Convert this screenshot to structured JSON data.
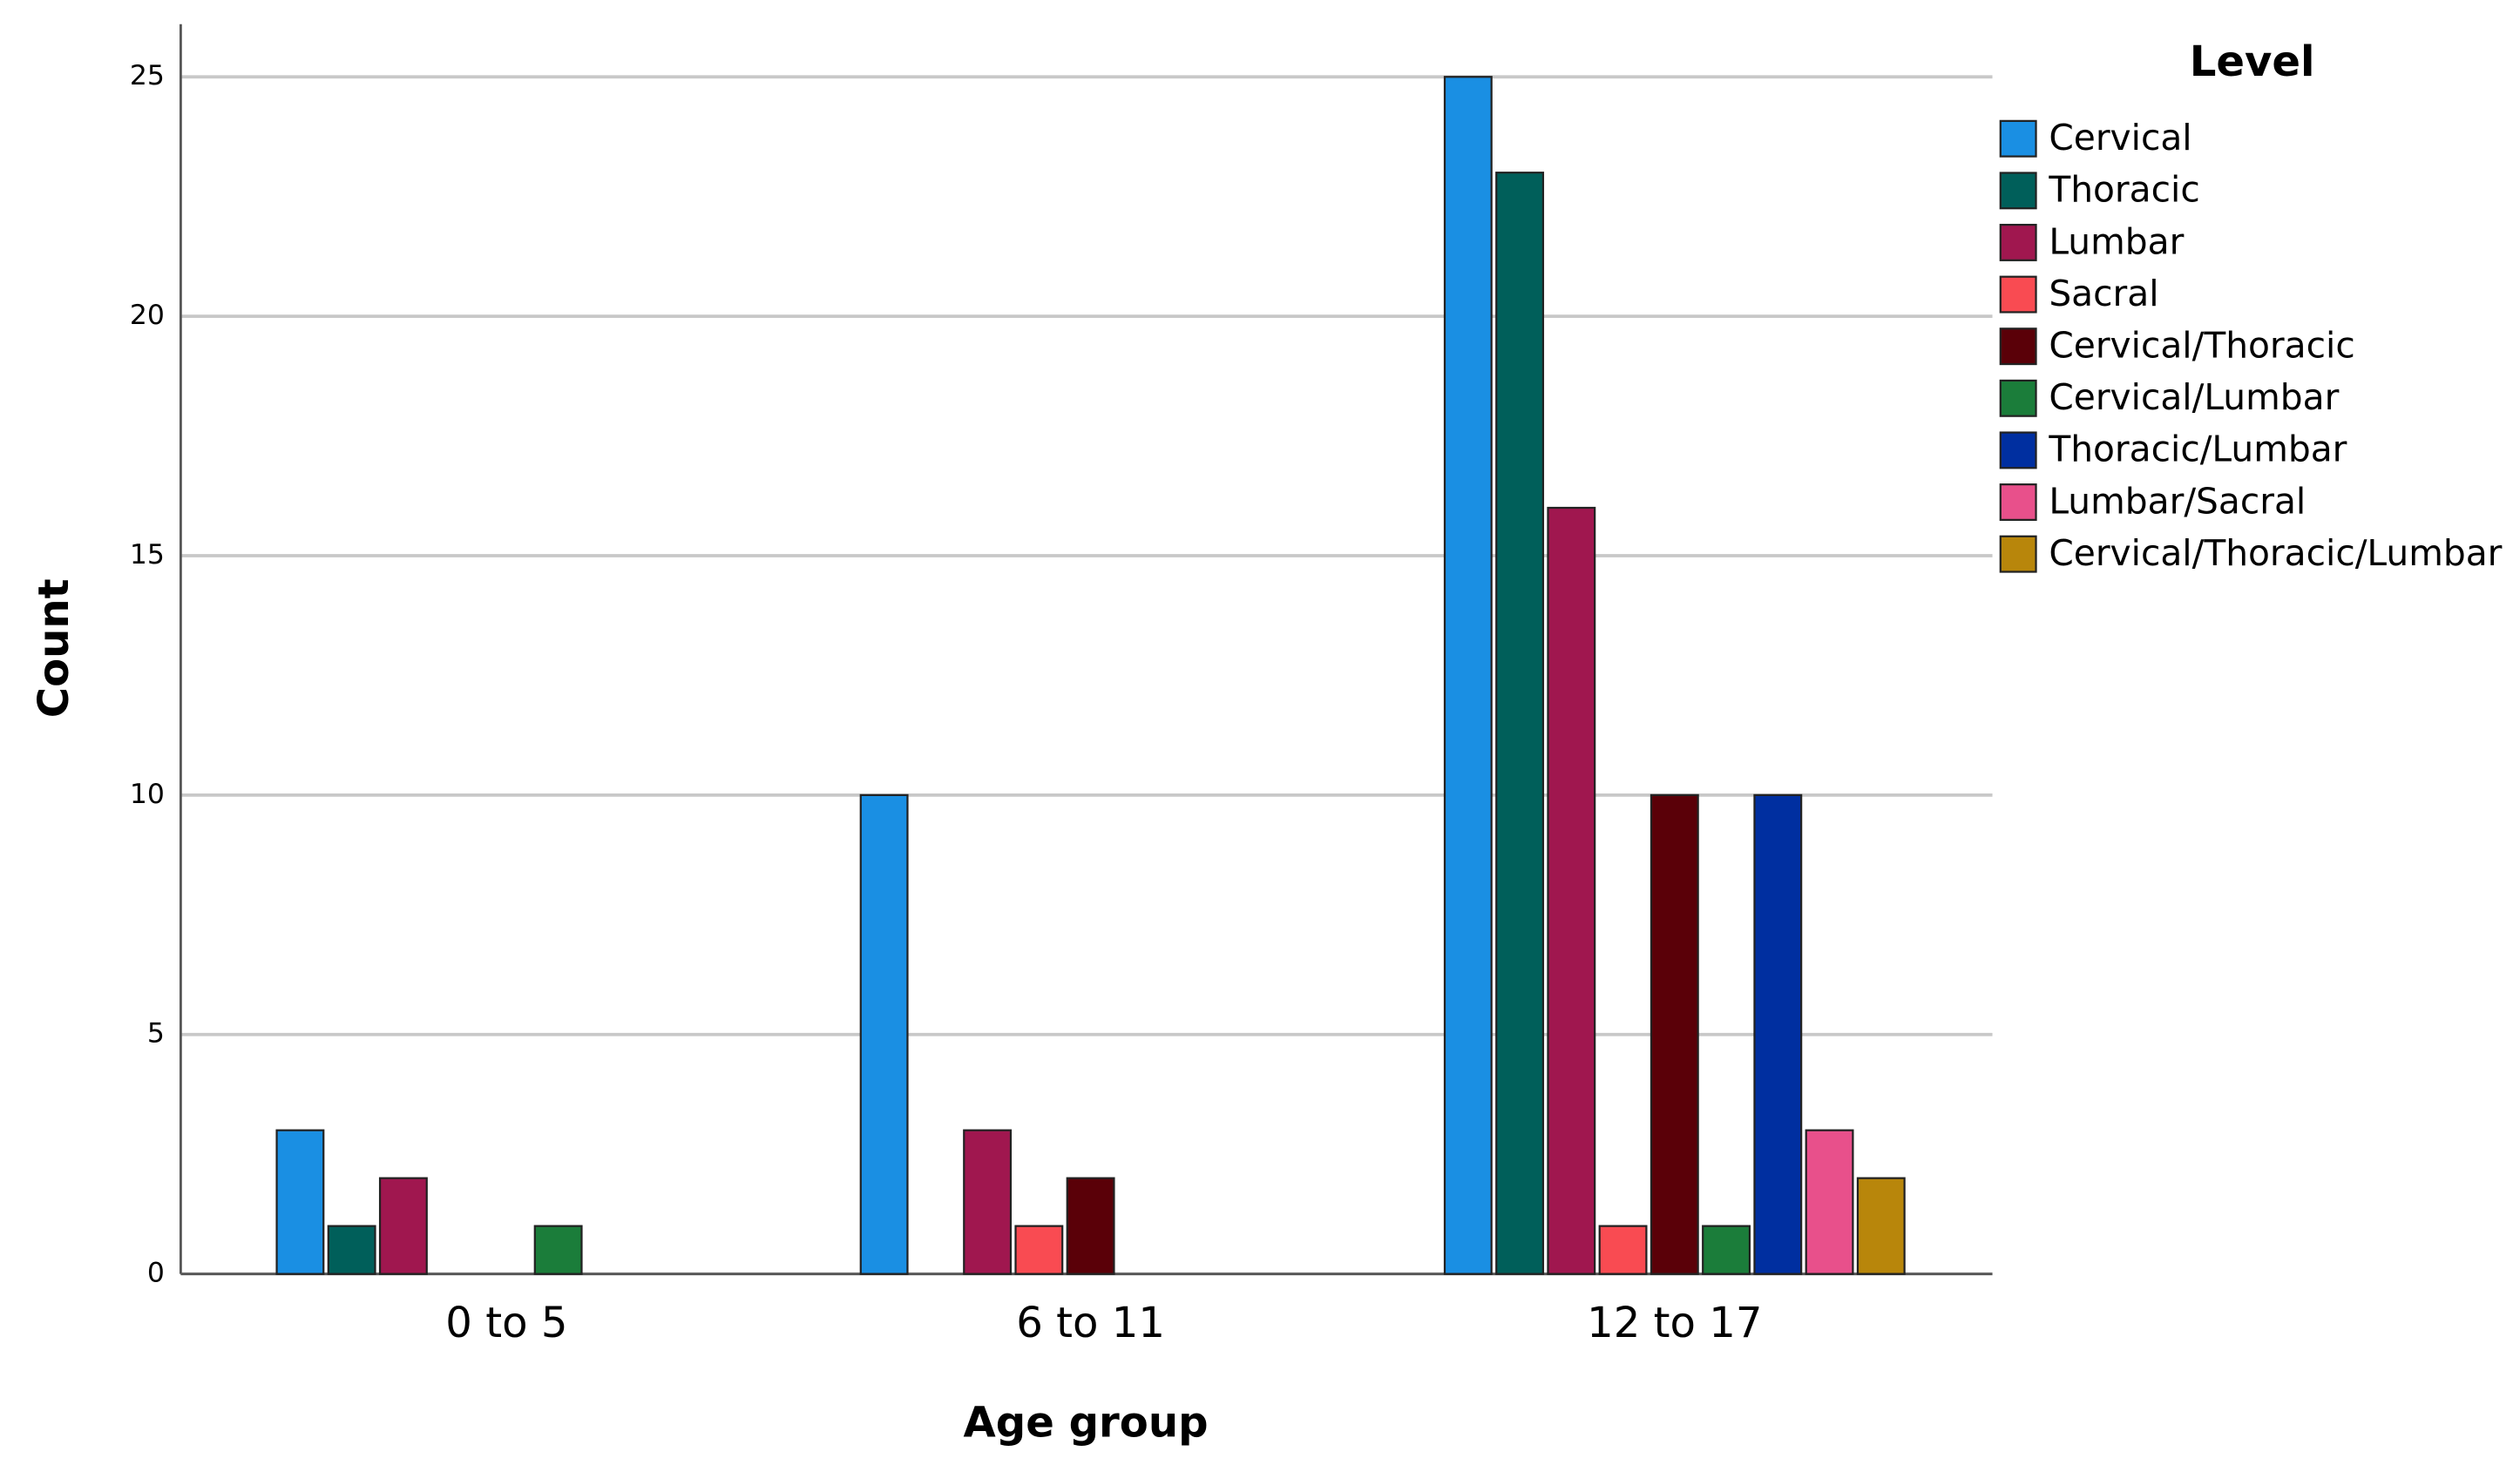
{
  "chart_data": {
    "type": "bar",
    "x_label": "Age group",
    "y_label": "Count",
    "legend_title": "Level",
    "categories": [
      "0 to 5",
      "6 to 11",
      "12 to 17"
    ],
    "series": [
      {
        "name": "Cervical",
        "color": "#1a8fe3",
        "values": [
          3,
          10,
          25
        ]
      },
      {
        "name": "Thoracic",
        "color": "#005f5a",
        "values": [
          1,
          null,
          23
        ]
      },
      {
        "name": "Lumbar",
        "color": "#a0174f",
        "values": [
          2,
          3,
          16
        ]
      },
      {
        "name": "Sacral",
        "color": "#f94b52",
        "values": [
          null,
          1,
          1
        ]
      },
      {
        "name": "Cervical/Thoracic",
        "color": "#5a0008",
        "values": [
          null,
          2,
          10
        ]
      },
      {
        "name": "Cervical/Lumbar",
        "color": "#1b7d3a",
        "values": [
          1,
          null,
          1
        ]
      },
      {
        "name": "Thoracic/Lumbar",
        "color": "#002fa0",
        "values": [
          null,
          null,
          10
        ]
      },
      {
        "name": "Lumbar/Sacral",
        "color": "#e8508b",
        "values": [
          null,
          null,
          3
        ]
      },
      {
        "name": "Cervical/Thoracic/Lumbar",
        "color": "#b8860b",
        "values": [
          null,
          null,
          2
        ]
      }
    ],
    "ylim": [
      0,
      26.1
    ],
    "yticks": [
      0,
      5,
      10,
      15,
      20,
      25
    ],
    "grid": true,
    "legend": "right"
  }
}
